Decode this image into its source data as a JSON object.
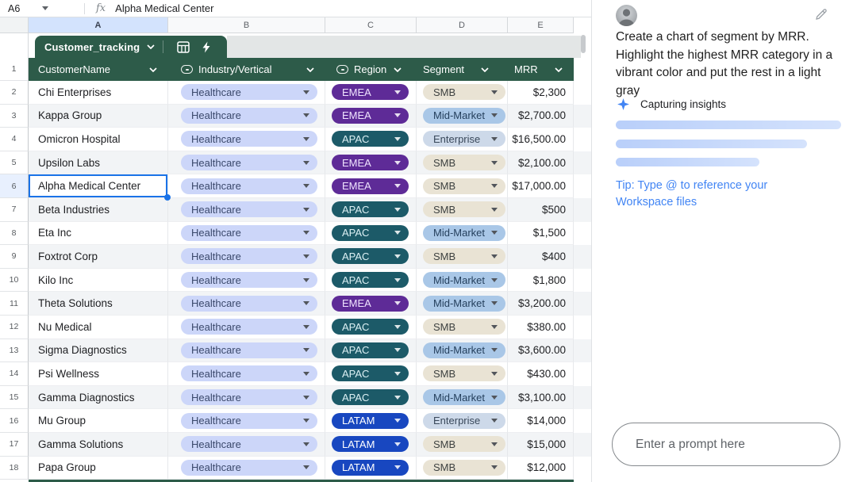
{
  "formula_bar": {
    "cell_ref": "A6",
    "fx_label": "fx",
    "value": "Alpha Medical Center"
  },
  "column_letters": [
    "A",
    "B",
    "C",
    "D",
    "E"
  ],
  "sheet_tab": {
    "label": "Customer_tracking"
  },
  "table": {
    "header_row_number": "1",
    "columns": [
      {
        "label": "CustomerName",
        "type_icon": false
      },
      {
        "label": "Industry/Vertical",
        "type_icon": true
      },
      {
        "label": "Region",
        "type_icon": true
      },
      {
        "label": "Segment",
        "type_icon": false
      },
      {
        "label": "MRR",
        "type_icon": false
      }
    ],
    "selected_cell": "A6",
    "rows": [
      {
        "n": 2,
        "customer": "Chi Enterprises",
        "industry": "Healthcare",
        "region": "EMEA",
        "segment": "SMB",
        "mrr": "$2,300"
      },
      {
        "n": 3,
        "customer": "Kappa Group",
        "industry": "Healthcare",
        "region": "EMEA",
        "segment": "Mid-Market",
        "mrr": "$2,700.00"
      },
      {
        "n": 4,
        "customer": "Omicron Hospital",
        "industry": "Healthcare",
        "region": "APAC",
        "segment": "Enterprise",
        "mrr": "$16,500.00"
      },
      {
        "n": 5,
        "customer": "Upsilon Labs",
        "industry": "Healthcare",
        "region": "EMEA",
        "segment": "SMB",
        "mrr": "$2,100.00"
      },
      {
        "n": 6,
        "customer": "Alpha Medical Center",
        "industry": "Healthcare",
        "region": "EMEA",
        "segment": "SMB",
        "mrr": "$17,000.00",
        "selected": true
      },
      {
        "n": 7,
        "customer": "Beta Industries",
        "industry": "Healthcare",
        "region": "APAC",
        "segment": "SMB",
        "mrr": "$500"
      },
      {
        "n": 8,
        "customer": "Eta Inc",
        "industry": "Healthcare",
        "region": "APAC",
        "segment": "Mid-Market",
        "mrr": "$1,500"
      },
      {
        "n": 9,
        "customer": "Foxtrot Corp",
        "industry": "Healthcare",
        "region": "APAC",
        "segment": "SMB",
        "mrr": "$400"
      },
      {
        "n": 10,
        "customer": "Kilo Inc",
        "industry": "Healthcare",
        "region": "APAC",
        "segment": "Mid-Market",
        "mrr": "$1,800"
      },
      {
        "n": 11,
        "customer": "Theta Solutions",
        "industry": "Healthcare",
        "region": "EMEA",
        "segment": "Mid-Market",
        "mrr": "$3,200.00"
      },
      {
        "n": 12,
        "customer": "Nu Medical",
        "industry": "Healthcare",
        "region": "APAC",
        "segment": "SMB",
        "mrr": "$380.00"
      },
      {
        "n": 13,
        "customer": "Sigma Diagnostics",
        "industry": "Healthcare",
        "region": "APAC",
        "segment": "Mid-Market",
        "mrr": "$3,600.00"
      },
      {
        "n": 14,
        "customer": "Psi Wellness",
        "industry": "Healthcare",
        "region": "APAC",
        "segment": "SMB",
        "mrr": "$430.00"
      },
      {
        "n": 15,
        "customer": "Gamma Diagnostics",
        "industry": "Healthcare",
        "region": "APAC",
        "segment": "Mid-Market",
        "mrr": "$3,100.00"
      },
      {
        "n": 16,
        "customer": "Mu Group",
        "industry": "Healthcare",
        "region": "LATAM",
        "segment": "Enterprise",
        "mrr": "$14,000"
      },
      {
        "n": 17,
        "customer": "Gamma Solutions",
        "industry": "Healthcare",
        "region": "LATAM",
        "segment": "SMB",
        "mrr": "$15,000"
      },
      {
        "n": 18,
        "customer": "Papa Group",
        "industry": "Healthcare",
        "region": "LATAM",
        "segment": "SMB",
        "mrr": "$12,000"
      }
    ]
  },
  "colors": {
    "header_green": "#2d5b49",
    "selection_blue": "#1a73e8",
    "column_highlight": "#d3e3fd",
    "tip_blue": "#4285f4",
    "region": {
      "EMEA": {
        "bg": "#5e2b97",
        "fg": "#f0e4ff"
      },
      "APAC": {
        "bg": "#1c5a68",
        "fg": "#dcf0f4"
      },
      "LATAM": {
        "bg": "#1847c0",
        "fg": "#ffffff"
      }
    },
    "segment": {
      "SMB": {
        "bg": "#e9e3d4",
        "fg": "#3d4140"
      },
      "Mid-Market": {
        "bg": "#a9c7e7",
        "fg": "#243f5c"
      },
      "Enterprise": {
        "bg": "#cdd9e9",
        "fg": "#39485a"
      }
    },
    "industry": {
      "Healthcare": {
        "bg": "#ccd6f9",
        "fg": "#3a486b"
      }
    }
  },
  "sidebar": {
    "prompt": "Create a chart of segment by MRR. Highlight the highest MRR category in a vibrant color and put the rest in a light gray",
    "status_label": "Capturing insights",
    "tip_text": "Tip: Type @ to reference your Workspace files",
    "input_placeholder": "Enter a prompt here"
  }
}
